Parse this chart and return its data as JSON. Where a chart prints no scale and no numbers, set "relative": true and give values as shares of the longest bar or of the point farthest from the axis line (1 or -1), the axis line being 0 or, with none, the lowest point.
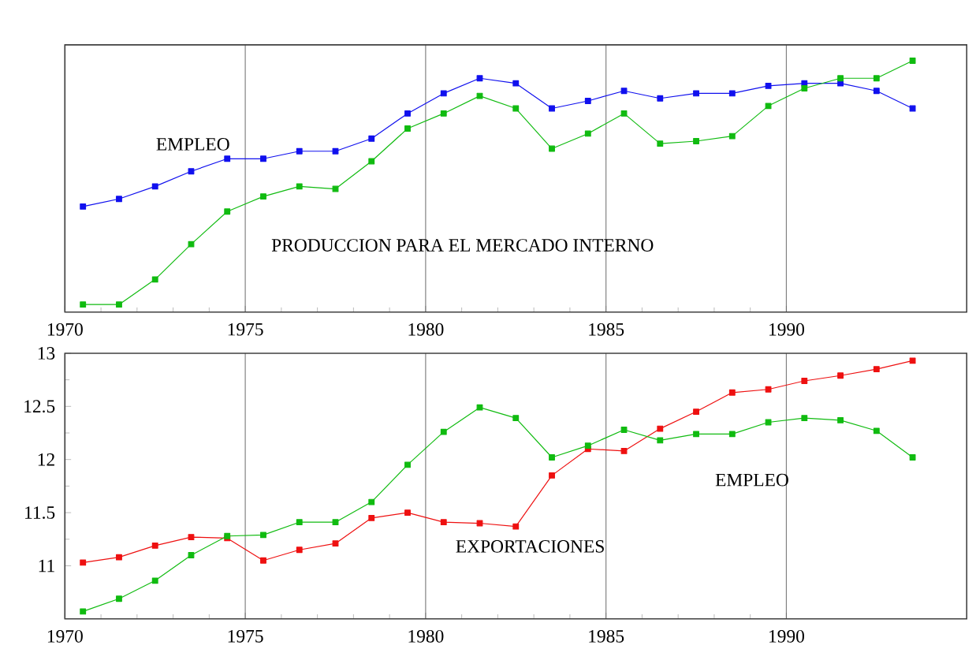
{
  "chart_data": [
    {
      "type": "line",
      "relative": true,
      "x": [
        1970.5,
        1971.5,
        1972.5,
        1973.5,
        1974.5,
        1975.5,
        1976.5,
        1977.5,
        1978.5,
        1979.5,
        1980.5,
        1981.5,
        1982.5,
        1983.5,
        1984.5,
        1985.5,
        1986.5,
        1987.5,
        1988.5,
        1989.5,
        1990.5,
        1991.5,
        1992.5,
        1993.5
      ],
      "xlim": [
        1970,
        1995
      ],
      "xticks": [
        1970,
        1975,
        1980,
        1985,
        1990
      ],
      "grid": "x",
      "marker": "square",
      "series": [
        {
          "name": "EMPLEO",
          "color": "#1010ee",
          "values": [
            0.42,
            0.45,
            0.5,
            0.56,
            0.61,
            0.61,
            0.64,
            0.64,
            0.69,
            0.79,
            0.87,
            0.93,
            0.91,
            0.81,
            0.84,
            0.88,
            0.85,
            0.87,
            0.87,
            0.9,
            0.91,
            0.91,
            0.88,
            0.81
          ]
        },
        {
          "name": "PRODUCCION PARA EL MERCADO INTERNO",
          "color": "#10bb10",
          "values": [
            0.03,
            0.03,
            0.13,
            0.27,
            0.4,
            0.46,
            0.5,
            0.49,
            0.6,
            0.73,
            0.79,
            0.86,
            0.81,
            0.65,
            0.71,
            0.79,
            0.67,
            0.68,
            0.7,
            0.82,
            0.89,
            0.93,
            0.93,
            1.0
          ]
        }
      ]
    },
    {
      "type": "line",
      "x": [
        1970.5,
        1971.5,
        1972.5,
        1973.5,
        1974.5,
        1975.5,
        1976.5,
        1977.5,
        1978.5,
        1979.5,
        1980.5,
        1981.5,
        1982.5,
        1983.5,
        1984.5,
        1985.5,
        1986.5,
        1987.5,
        1988.5,
        1989.5,
        1990.5,
        1991.5,
        1992.5,
        1993.5
      ],
      "xlim": [
        1970,
        1995
      ],
      "xticks": [
        1970,
        1975,
        1980,
        1985,
        1990
      ],
      "ylim": [
        10.5,
        13
      ],
      "yticks": [
        11,
        11.5,
        12,
        12.5,
        13
      ],
      "grid": "x",
      "marker": "square",
      "series": [
        {
          "name": "EXPORTACIONES",
          "color": "#ee1010",
          "values": [
            11.03,
            11.08,
            11.19,
            11.27,
            11.26,
            11.05,
            11.15,
            11.21,
            11.45,
            11.5,
            11.41,
            11.4,
            11.37,
            11.85,
            12.1,
            12.08,
            12.29,
            12.45,
            12.63,
            12.66,
            12.74,
            12.79,
            12.85,
            12.93
          ]
        },
        {
          "name": "EMPLEO",
          "color": "#10bb10",
          "values": [
            10.57,
            10.69,
            10.86,
            11.1,
            11.28,
            11.29,
            11.41,
            11.41,
            11.6,
            11.95,
            12.26,
            12.49,
            12.39,
            12.02,
            12.13,
            12.28,
            12.18,
            12.24,
            12.24,
            12.35,
            12.39,
            12.37,
            12.27,
            12.02
          ]
        }
      ]
    }
  ]
}
